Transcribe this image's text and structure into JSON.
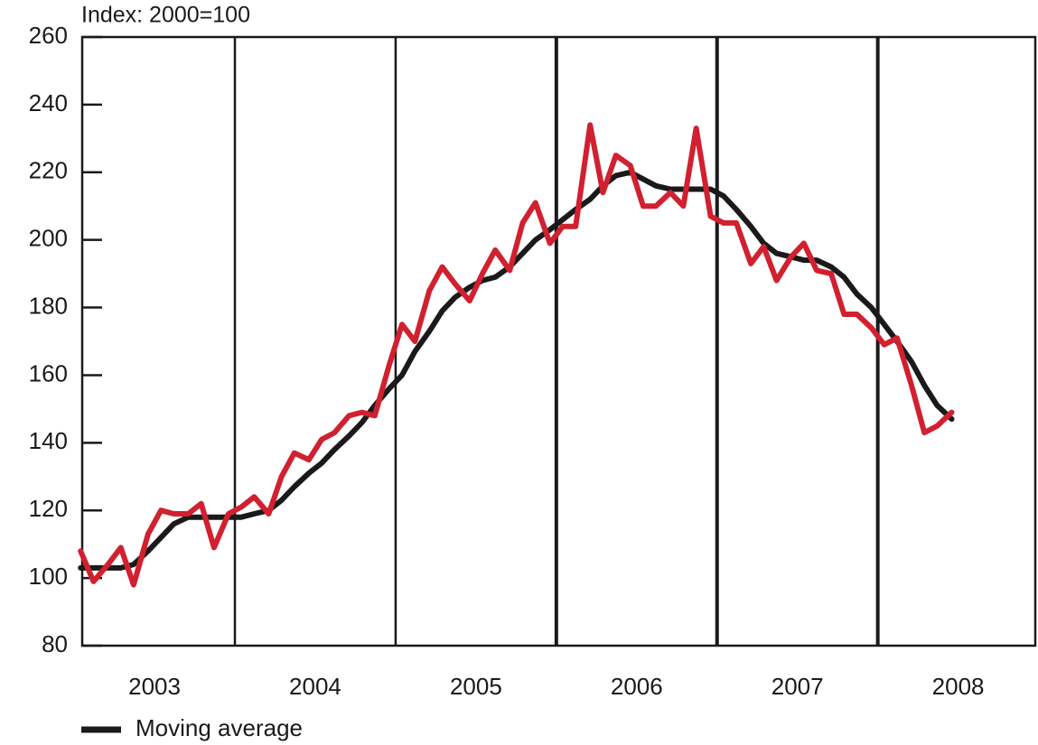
{
  "chart_data": {
    "type": "line",
    "y_label": "Index: 2000=100",
    "xlim": [
      2003.05,
      2008.98
    ],
    "ylim": [
      80,
      260
    ],
    "yticks": [
      80,
      100,
      120,
      140,
      160,
      180,
      200,
      220,
      240,
      260
    ],
    "xticks": [
      {
        "value": 2003.5,
        "label": "2003"
      },
      {
        "value": 2004.5,
        "label": "2004"
      },
      {
        "value": 2005.5,
        "label": "2005"
      },
      {
        "value": 2006.5,
        "label": "2006"
      },
      {
        "value": 2007.5,
        "label": "2007"
      },
      {
        "value": 2008.5,
        "label": "2008"
      }
    ],
    "x": [
      2003.04,
      2003.12,
      2003.21,
      2003.29,
      2003.37,
      2003.46,
      2003.54,
      2003.62,
      2003.71,
      2003.79,
      2003.87,
      2003.96,
      2004.04,
      2004.12,
      2004.21,
      2004.29,
      2004.37,
      2004.46,
      2004.54,
      2004.62,
      2004.71,
      2004.79,
      2004.87,
      2004.96,
      2005.04,
      2005.12,
      2005.21,
      2005.29,
      2005.37,
      2005.46,
      2005.54,
      2005.62,
      2005.71,
      2005.79,
      2005.87,
      2005.96,
      2006.04,
      2006.12,
      2006.21,
      2006.29,
      2006.37,
      2006.46,
      2006.54,
      2006.62,
      2006.71,
      2006.79,
      2006.87,
      2006.96,
      2007.04,
      2007.12,
      2007.21,
      2007.29,
      2007.37,
      2007.46,
      2007.54,
      2007.62,
      2007.71,
      2007.79,
      2007.87,
      2007.96,
      2008.04,
      2008.12,
      2008.21,
      2008.29,
      2008.37,
      2008.46
    ],
    "series": [
      {
        "color": "#d1202f",
        "values": [
          108,
          99,
          104,
          109,
          98,
          113,
          120,
          119,
          119,
          122,
          109,
          119,
          121,
          124,
          119,
          130,
          137,
          135,
          141,
          143,
          148,
          149,
          148,
          163,
          175,
          170,
          185,
          192,
          187,
          182,
          190,
          197,
          191,
          205,
          211,
          199,
          204,
          204,
          234,
          214,
          225,
          222,
          210,
          210,
          214,
          210,
          233,
          207,
          205,
          205,
          193,
          198,
          188,
          195,
          199,
          191,
          190,
          178,
          178,
          174,
          169,
          171,
          157,
          143,
          145,
          149
        ]
      },
      {
        "name": "Moving average",
        "color": "#1a1a1a",
        "values": [
          103,
          103,
          103,
          103,
          104,
          108,
          112,
          116,
          118,
          118,
          118,
          118,
          118,
          119,
          120,
          123,
          127,
          131,
          134,
          138,
          142,
          146,
          151,
          156,
          160,
          167,
          173,
          179,
          183,
          186,
          188,
          189,
          192,
          196,
          200,
          203,
          206,
          209,
          212,
          216,
          219,
          220,
          218,
          216,
          215,
          215,
          215,
          215,
          213,
          209,
          204,
          199,
          196,
          195,
          194,
          194,
          192,
          189,
          184,
          180,
          175,
          170,
          164,
          157,
          151,
          147
        ]
      }
    ]
  }
}
